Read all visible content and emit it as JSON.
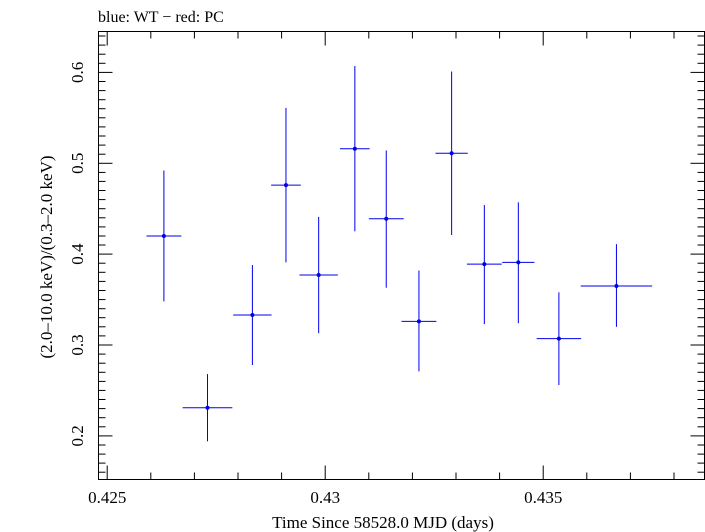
{
  "chart_data": {
    "type": "scatter",
    "title": "blue: WT − red: PC",
    "xlabel": "Time Since 58528.0 MJD (days)",
    "ylabel": "(2.0–10.0 keV)/(0.3–2.0 keV)",
    "xlim": [
      0.4248,
      0.4387
    ],
    "ylim": [
      0.152,
      0.645
    ],
    "x_ticks": [
      0.425,
      0.43,
      0.435
    ],
    "x_tick_labels": [
      "0.425",
      "0.43",
      "0.435"
    ],
    "y_ticks": [
      0.2,
      0.3,
      0.4,
      0.5,
      0.6
    ],
    "y_tick_labels": [
      "0.2",
      "0.3",
      "0.4",
      "0.5",
      "0.6"
    ],
    "grid": false,
    "series": [
      {
        "color": "#0000ee",
        "points": [
          {
            "x": 0.4263,
            "y": 0.42,
            "xerr": 0.0004,
            "ylo": 0.348,
            "yhi": 0.492
          },
          {
            "x": 0.4273,
            "y": 0.231,
            "xerr": 0.00057,
            "ylo": 0.194,
            "yhi": 0.268
          },
          {
            "x": 0.42833,
            "y": 0.333,
            "xerr": 0.00044,
            "ylo": 0.278,
            "yhi": 0.388
          },
          {
            "x": 0.4291,
            "y": 0.476,
            "xerr": 0.00034,
            "ylo": 0.391,
            "yhi": 0.561
          },
          {
            "x": 0.42985,
            "y": 0.377,
            "xerr": 0.00044,
            "ylo": 0.313,
            "yhi": 0.441
          },
          {
            "x": 0.43068,
            "y": 0.516,
            "xerr": 0.00034,
            "ylo": 0.425,
            "yhi": 0.607
          },
          {
            "x": 0.4314,
            "y": 0.439,
            "xerr": 0.0004,
            "ylo": 0.363,
            "yhi": 0.514
          },
          {
            "x": 0.43215,
            "y": 0.326,
            "xerr": 0.0004,
            "ylo": 0.271,
            "yhi": 0.382
          },
          {
            "x": 0.4329,
            "y": 0.511,
            "xerr": 0.00037,
            "ylo": 0.421,
            "yhi": 0.601
          },
          {
            "x": 0.43365,
            "y": 0.389,
            "xerr": 0.0004,
            "ylo": 0.323,
            "yhi": 0.454
          },
          {
            "x": 0.43443,
            "y": 0.391,
            "xerr": 0.00037,
            "ylo": 0.324,
            "yhi": 0.457
          },
          {
            "x": 0.43536,
            "y": 0.307,
            "xerr": 0.00051,
            "ylo": 0.256,
            "yhi": 0.358
          },
          {
            "x": 0.43668,
            "y": 0.365,
            "xerr": 0.00082,
            "ylo": 0.32,
            "yhi": 0.411
          }
        ]
      }
    ]
  }
}
